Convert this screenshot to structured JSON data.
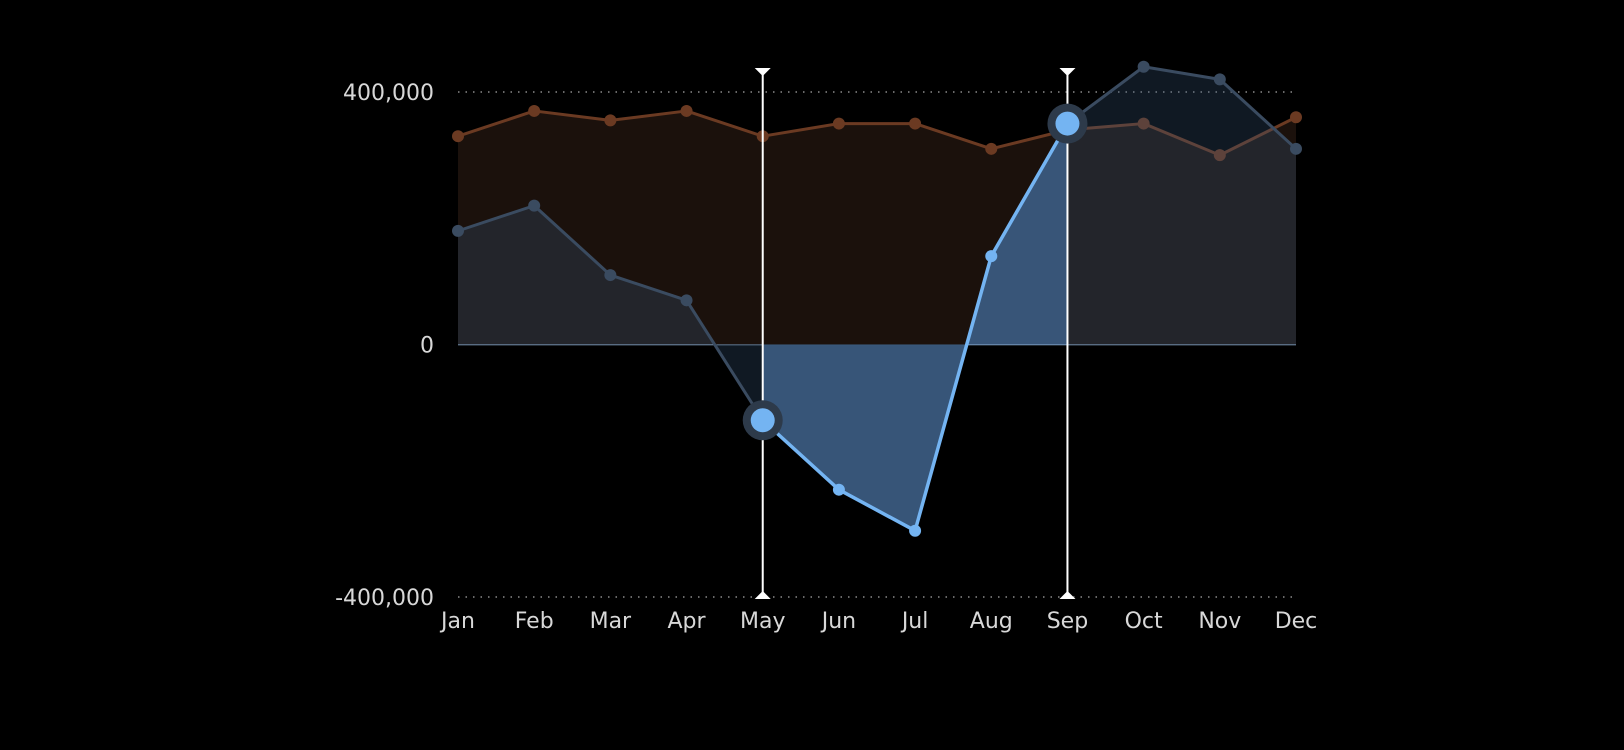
{
  "chart_data": {
    "type": "area",
    "categories": [
      "Jan",
      "Feb",
      "Mar",
      "Apr",
      "May",
      "Jun",
      "Jul",
      "Aug",
      "Sep",
      "Oct",
      "Nov",
      "Dec"
    ],
    "series": [
      {
        "values": [
          330000,
          370000,
          355000,
          370000,
          330000,
          350000,
          350000,
          310000,
          340000,
          350000,
          300000,
          360000
        ],
        "color": "#6b3a22",
        "fill": "#1b110c"
      },
      {
        "values": [
          180000,
          220000,
          110000,
          70000,
          -120000,
          -230000,
          -295000,
          140000,
          350000,
          440000,
          420000,
          310000
        ],
        "color": "#74b4f2",
        "fill": "#3a5a7e",
        "highlighted_range": [
          "May",
          "Sep"
        ]
      }
    ],
    "yticks": [
      {
        "value": 400000,
        "label": "400,000"
      },
      {
        "value": 0,
        "label": "0"
      },
      {
        "value": -400000,
        "label": "-400,000"
      }
    ],
    "ylim": [
      -400000,
      400000
    ],
    "selection": {
      "start": "May",
      "end": "Sep",
      "color": "#ffffff"
    },
    "grid": "dotted horizontal at ticks",
    "background": "#000000"
  }
}
